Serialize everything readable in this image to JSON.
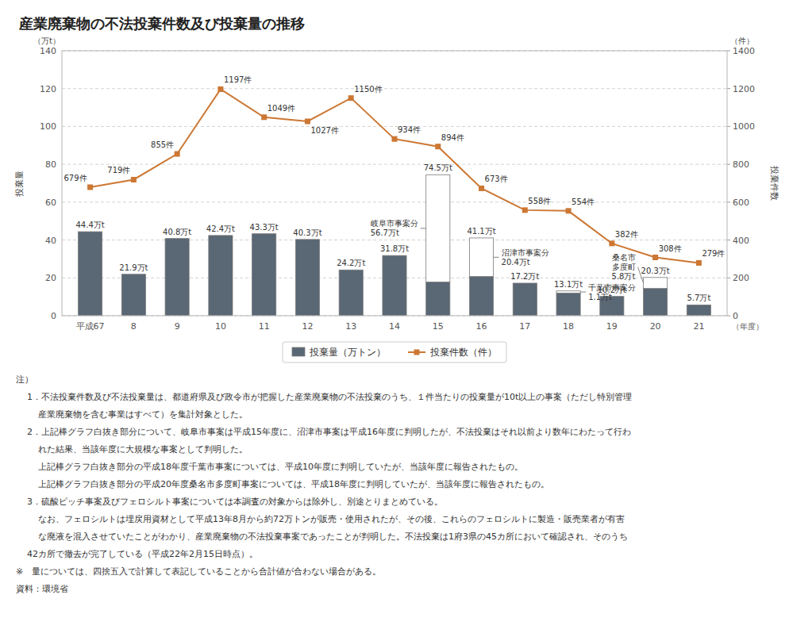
{
  "chart_data": {
    "type": "bar",
    "title": "産業廃棄物の不法投棄件数及び投棄量の推移",
    "categories": [
      "平成67",
      "8",
      "9",
      "10",
      "11",
      "12",
      "13",
      "14",
      "15",
      "16",
      "17",
      "18",
      "19",
      "20",
      "21"
    ],
    "x_label": "（年度）",
    "y_label": "投棄量",
    "y_unit": "（万t）",
    "y2_label": "投棄件数",
    "y2_unit": "（件）",
    "ylim": [
      0,
      140
    ],
    "yticks": [
      0,
      20,
      40,
      60,
      80,
      100,
      120,
      140
    ],
    "y2lim": [
      0,
      1400
    ],
    "y2ticks": [
      0,
      200,
      400,
      600,
      800,
      1000,
      1200,
      1400
    ],
    "grid": true,
    "stacked": true,
    "data_labels": true,
    "legend": "bottom",
    "series": [
      {
        "name": "投棄量（万トン）",
        "type": "bar",
        "color": "#5a6775",
        "values": [
          44.4,
          21.9,
          40.8,
          42.4,
          43.3,
          40.3,
          24.2,
          31.8,
          17.8,
          20.7,
          17.2,
          12.0,
          10.2,
          14.4,
          5.7
        ]
      },
      {
        "type": "bar",
        "color": "#ffffff",
        "values": [
          0,
          0,
          0,
          0,
          0,
          0,
          0,
          0,
          56.7,
          20.4,
          0,
          1.1,
          0,
          5.8,
          0
        ]
      },
      {
        "name": "投棄件数（件）",
        "type": "line",
        "axis": "y2",
        "color": "#cc7733",
        "marker": "square",
        "values": [
          679,
          719,
          855,
          1197,
          1049,
          1027,
          1150,
          934,
          894,
          673,
          558,
          554,
          382,
          308,
          279
        ],
        "value_labels": [
          "679件",
          "719件",
          "855件",
          "1197件",
          "1049件",
          "1027件",
          "1150件",
          "934件",
          "894件",
          "673件",
          "558件",
          "554件",
          "382件",
          "308件",
          "279件"
        ]
      }
    ],
    "totals": [
      44.4,
      21.9,
      40.8,
      42.4,
      43.3,
      40.3,
      24.2,
      31.8,
      74.5,
      41.1,
      17.2,
      13.1,
      10.2,
      20.3,
      5.7
    ],
    "total_labels": [
      "44.4万t",
      "21.9万t",
      "40.8万t",
      "42.4万t",
      "43.3万t",
      "40.3万t",
      "24.2万t",
      "31.8万t",
      "74.5万t",
      "41.1万t",
      "17.2万t",
      "13.1万t",
      "10.2万t",
      "20.3万t",
      "5.7万t"
    ],
    "annotations": [
      {
        "text": "岐阜市事案分\n56.7万t",
        "category": "15"
      },
      {
        "text": "沼津市事案分\n20.4万t",
        "category": "16"
      },
      {
        "text": "千葉市事案分\n1.1万t",
        "category": "18"
      },
      {
        "text": "桑名市\n多度町\n5.8万t",
        "category": "20"
      }
    ],
    "notes": [
      "注）",
      "1．不法投棄件数及び不法投棄量は、都道府県及び政令市が把握した産業廃棄物の不法投棄のうち、１件当たりの投棄量が10t以上の事案（ただし特別管理",
      "産業廃棄物を含む事業はすべて）を集計対象とした。",
      "2．上記棒グラフ白抜き部分について、岐阜市事案は平成15年度に、沼津市事案は平成16年度に判明したが、不法投棄はそれ以前より数年にわたって行わ",
      "れた結果、当該年度に大規模な事案として判明した。",
      "上記棒グラフ白抜き部分の平成18年度千葉市事案については、平成10年度に判明していたが、当該年度に報告されたもの。",
      "上記棒グラフ白抜き部分の平成20年度桑名市多度町事案については、平成18年度に判明していたが、当該年度に報告されたもの。",
      "3．硫酸ピッチ事案及びフェロシルト事案については本調査の対象からは除外し、別途とりまとめている。",
      "なお、フェロシルトは埋戻用資材として平成13年8月から約72万トンが販売・使用されたが、その後、これらのフェロシルトに製造・販売業者が有害",
      "な廃液を混入させていたことがわかり、産業廃棄物の不法投棄事案であったことが判明した。不法投棄は1府3県の45カ所において確認され、そのうち",
      "42カ所で撤去が完了している（平成22年2月15日時点）。",
      "※　量については、四捨五入で計算して表記していることから合計値が合わない場合がある。",
      "資料：環境省"
    ]
  }
}
